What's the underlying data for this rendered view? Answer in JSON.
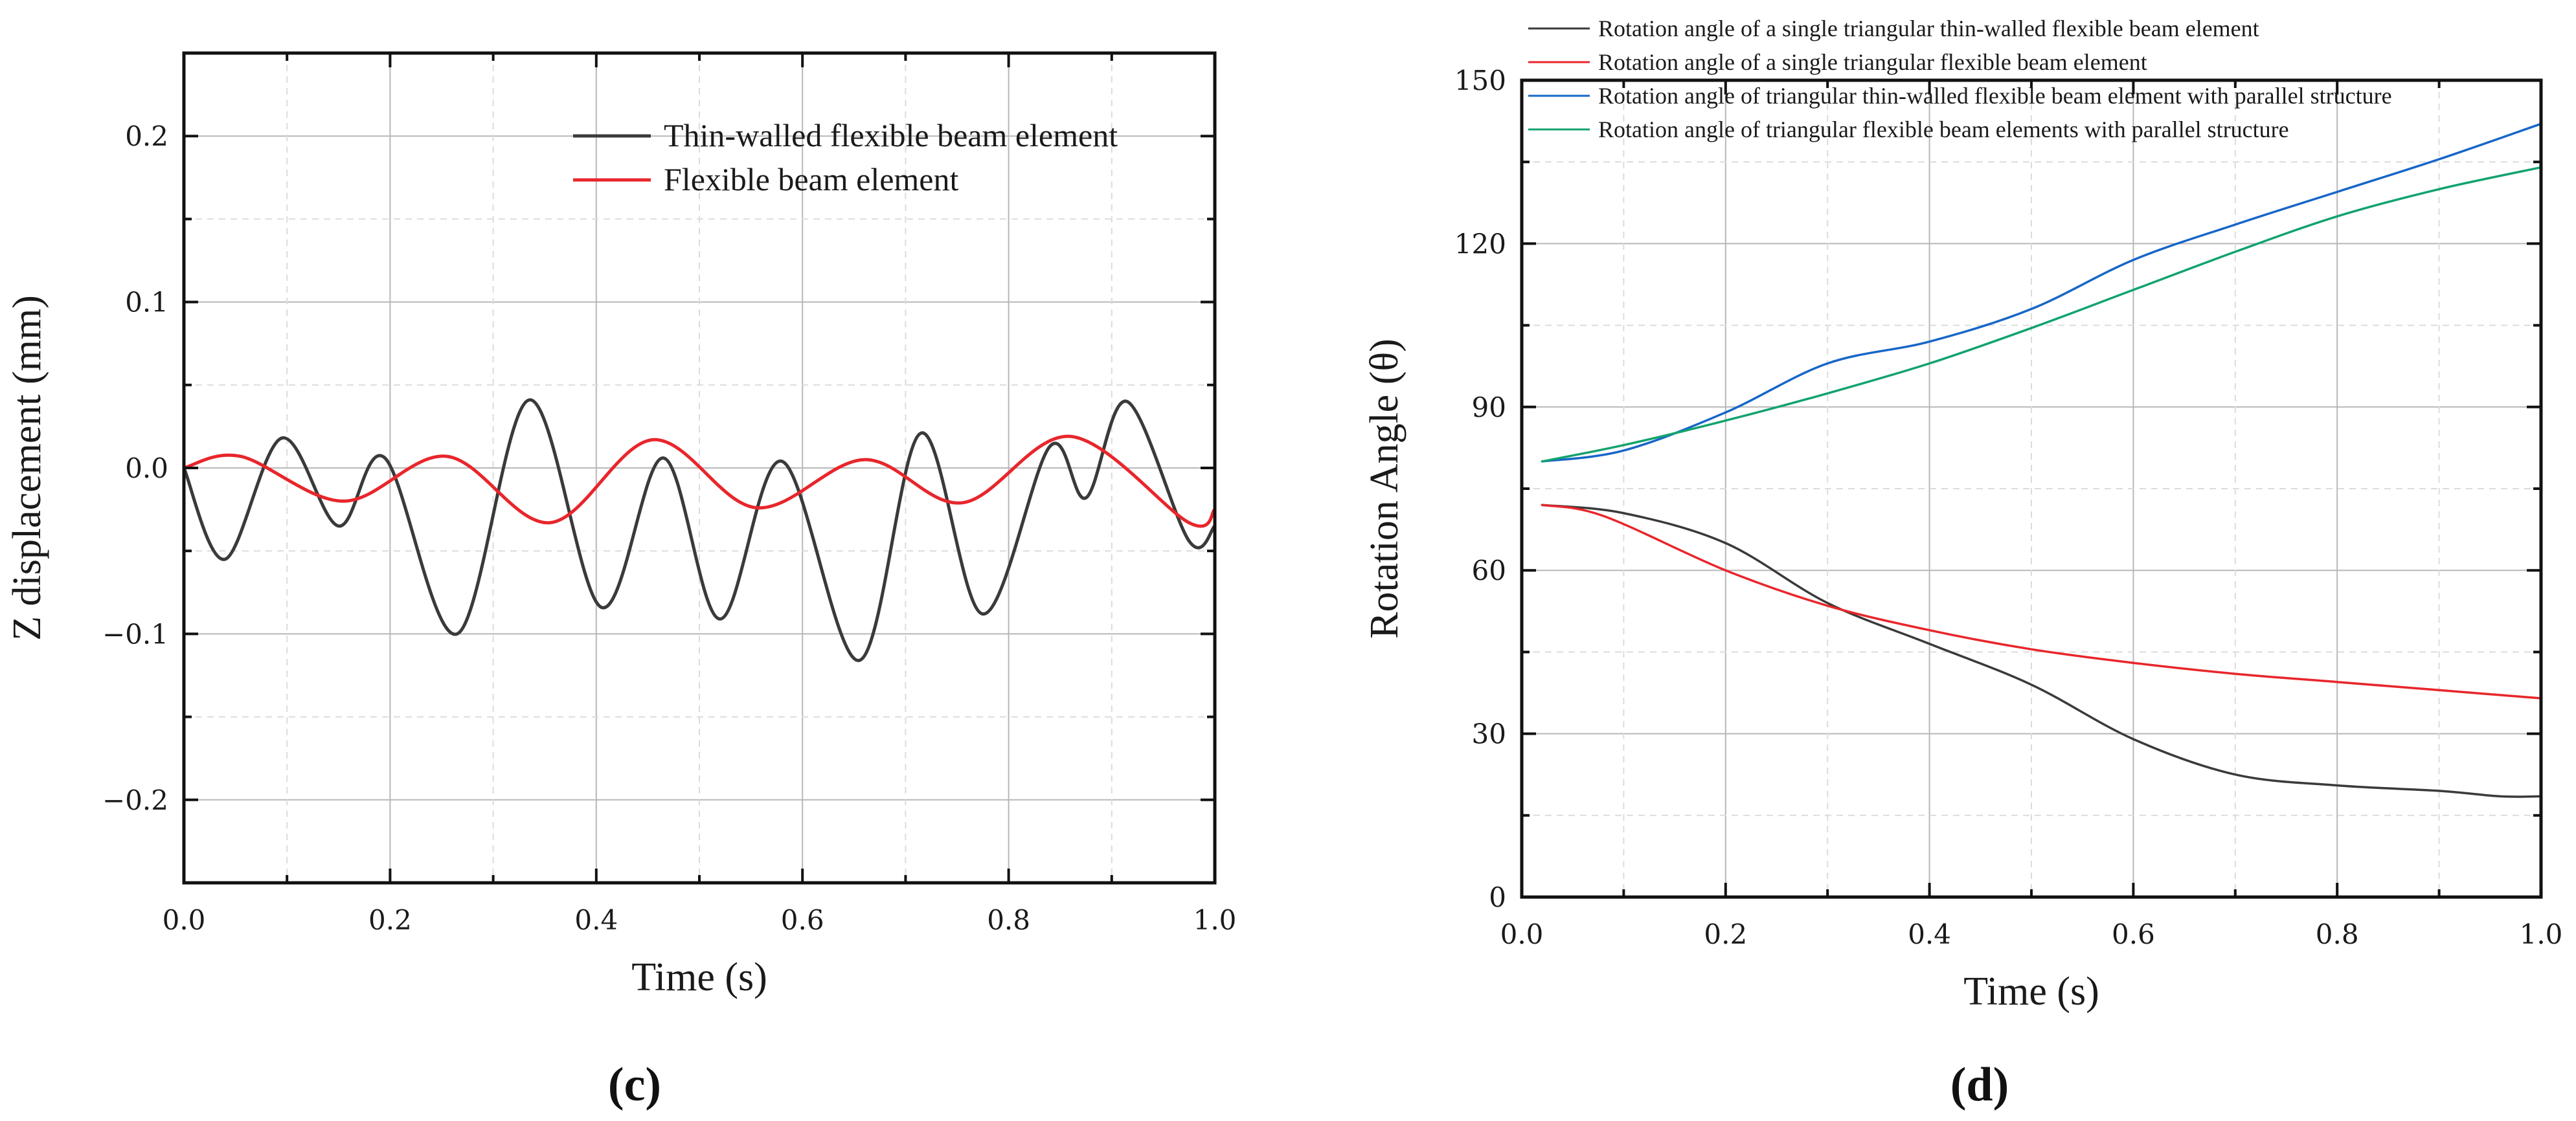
{
  "chart_data": [
    {
      "type": "line",
      "panel_label": "(c)",
      "xlabel": "Time (s)",
      "ylabel": "Z displacement (mm)",
      "xlim": [
        0,
        1.0
      ],
      "ylim": [
        -0.25,
        0.25
      ],
      "xticks": [
        0.0,
        0.2,
        0.4,
        0.6,
        0.8,
        1.0
      ],
      "xtick_labels": [
        "0.0",
        "0.2",
        "0.4",
        "0.6",
        "0.8",
        "1.0"
      ],
      "yticks": [
        -0.2,
        -0.1,
        0.0,
        0.1,
        0.2
      ],
      "ytick_labels": [
        "−0.2",
        "−0.1",
        "0.0",
        "0.1",
        "0.2"
      ],
      "legend_position": "top-right",
      "series": [
        {
          "name": "Thin-walled flexible beam element",
          "color": "#3a3a3a",
          "points": [
            [
              0.0,
              0.0
            ],
            [
              0.04,
              -0.055
            ],
            [
              0.095,
              0.018
            ],
            [
              0.15,
              -0.035
            ],
            [
              0.195,
              0.006
            ],
            [
              0.265,
              -0.1
            ],
            [
              0.335,
              0.041
            ],
            [
              0.405,
              -0.084
            ],
            [
              0.465,
              0.006
            ],
            [
              0.52,
              -0.091
            ],
            [
              0.58,
              0.004
            ],
            [
              0.655,
              -0.116
            ],
            [
              0.715,
              0.021
            ],
            [
              0.775,
              -0.088
            ],
            [
              0.84,
              0.013
            ],
            [
              0.875,
              -0.018
            ],
            [
              0.915,
              0.04
            ],
            [
              0.975,
              -0.044
            ],
            [
              1.0,
              -0.035
            ]
          ]
        },
        {
          "name": "Flexible beam element",
          "color": "#e8262b",
          "points": [
            [
              0.0,
              0.0
            ],
            [
              0.055,
              0.007
            ],
            [
              0.155,
              -0.02
            ],
            [
              0.255,
              0.007
            ],
            [
              0.355,
              -0.033
            ],
            [
              0.455,
              0.017
            ],
            [
              0.555,
              -0.024
            ],
            [
              0.66,
              0.005
            ],
            [
              0.755,
              -0.021
            ],
            [
              0.86,
              0.019
            ],
            [
              0.975,
              -0.033
            ],
            [
              1.0,
              -0.025
            ]
          ]
        }
      ]
    },
    {
      "type": "line",
      "panel_label": "(d)",
      "xlabel": "Time (s)",
      "ylabel": "Rotation Angle (θ)",
      "xlim": [
        0,
        1.0
      ],
      "ylim": [
        0,
        150
      ],
      "xticks": [
        0.0,
        0.2,
        0.4,
        0.6,
        0.8,
        1.0
      ],
      "xtick_labels": [
        "0.0",
        "0.2",
        "0.4",
        "0.6",
        "0.8",
        "1.0"
      ],
      "yticks": [
        0,
        30,
        60,
        90,
        120,
        150
      ],
      "ytick_labels": [
        "0",
        "30",
        "60",
        "90",
        "120",
        "150"
      ],
      "legend_position": "top-left",
      "series": [
        {
          "name": "Rotation angle of a single triangular thin-walled flexible beam element",
          "color": "#3a3a3a",
          "points": [
            [
              0.02,
              72
            ],
            [
              0.1,
              70.5
            ],
            [
              0.2,
              65
            ],
            [
              0.3,
              54
            ],
            [
              0.4,
              46.5
            ],
            [
              0.5,
              39
            ],
            [
              0.6,
              29
            ],
            [
              0.7,
              22.5
            ],
            [
              0.8,
              20.5
            ],
            [
              0.9,
              19.5
            ],
            [
              0.96,
              18.5
            ],
            [
              1.0,
              18.5
            ]
          ]
        },
        {
          "name": "Rotation angle of a single triangular flexible beam element",
          "color": "#e8262b",
          "points": [
            [
              0.02,
              72
            ],
            [
              0.08,
              70
            ],
            [
              0.2,
              60
            ],
            [
              0.3,
              53.5
            ],
            [
              0.4,
              49
            ],
            [
              0.5,
              45.5
            ],
            [
              0.6,
              43
            ],
            [
              0.7,
              41
            ],
            [
              0.8,
              39.5
            ],
            [
              0.9,
              38
            ],
            [
              1.0,
              36.5
            ]
          ]
        },
        {
          "name": "Rotation angle of triangular thin-walled flexible beam element with parallel structure",
          "color": "#1666c8",
          "points": [
            [
              0.02,
              80
            ],
            [
              0.1,
              82
            ],
            [
              0.2,
              89
            ],
            [
              0.3,
              98
            ],
            [
              0.4,
              102
            ],
            [
              0.5,
              108
            ],
            [
              0.6,
              117
            ],
            [
              0.7,
              123.5
            ],
            [
              0.8,
              129.5
            ],
            [
              0.9,
              135.5
            ],
            [
              1.0,
              142
            ]
          ]
        },
        {
          "name": "Rotation angle of triangular flexible beam elements with parallel structure",
          "color": "#12a36e",
          "points": [
            [
              0.02,
              80
            ],
            [
              0.1,
              83
            ],
            [
              0.2,
              87.5
            ],
            [
              0.3,
              92.5
            ],
            [
              0.4,
              98
            ],
            [
              0.5,
              104.5
            ],
            [
              0.6,
              111.5
            ],
            [
              0.7,
              118.5
            ],
            [
              0.8,
              125
            ],
            [
              0.9,
              130
            ],
            [
              1.0,
              134
            ]
          ]
        }
      ]
    }
  ]
}
